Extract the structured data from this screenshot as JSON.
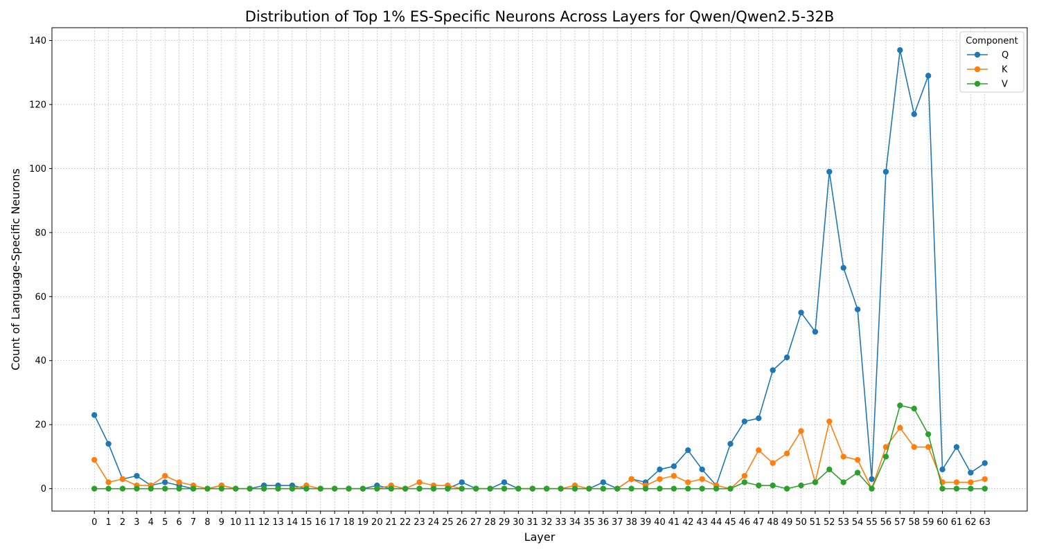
{
  "chart_data": {
    "type": "line",
    "title": "Distribution of Top 1% ES-Specific Neurons Across Layers for Qwen/Qwen2.5-32B",
    "xlabel": "Layer",
    "ylabel": "Count of Language-Specific Neurons",
    "x": [
      0,
      1,
      2,
      3,
      4,
      5,
      6,
      7,
      8,
      9,
      10,
      11,
      12,
      13,
      14,
      15,
      16,
      17,
      18,
      19,
      20,
      21,
      22,
      23,
      24,
      25,
      26,
      27,
      28,
      29,
      30,
      31,
      32,
      33,
      34,
      35,
      36,
      37,
      38,
      39,
      40,
      41,
      42,
      43,
      44,
      45,
      46,
      47,
      48,
      49,
      50,
      51,
      52,
      53,
      54,
      55,
      56,
      57,
      58,
      59,
      60,
      61,
      62,
      63
    ],
    "x_ticks": [
      "0",
      "1",
      "2",
      "3",
      "4",
      "5",
      "6",
      "7",
      "8",
      "9",
      "10",
      "11",
      "12",
      "13",
      "14",
      "15",
      "16",
      "17",
      "18",
      "19",
      "20",
      "21",
      "22",
      "23",
      "24",
      "25",
      "26",
      "27",
      "28",
      "29",
      "30",
      "31",
      "32",
      "33",
      "34",
      "35",
      "36",
      "37",
      "38",
      "39",
      "40",
      "41",
      "42",
      "43",
      "44",
      "45",
      "46",
      "47",
      "48",
      "49",
      "50",
      "51",
      "52",
      "53",
      "54",
      "55",
      "56",
      "57",
      "58",
      "59",
      "60",
      "61",
      "62",
      "63"
    ],
    "y_ticks": [
      "0",
      "20",
      "40",
      "60",
      "80",
      "100",
      "120",
      "140"
    ],
    "ylim": [
      -7,
      144
    ],
    "grid": true,
    "legend": {
      "title": "Component",
      "placement": "top-right"
    },
    "series": [
      {
        "name": "Q",
        "color": "#1f77b4",
        "values": [
          23,
          14,
          3,
          4,
          1,
          2,
          1,
          0,
          0,
          1,
          0,
          0,
          1,
          1,
          1,
          0,
          0,
          0,
          0,
          0,
          1,
          0,
          0,
          0,
          0,
          0,
          2,
          0,
          0,
          2,
          0,
          0,
          0,
          0,
          0,
          0,
          2,
          0,
          3,
          2,
          6,
          7,
          12,
          6,
          1,
          14,
          21,
          22,
          37,
          41,
          55,
          49,
          99,
          69,
          56,
          3,
          99,
          137,
          117,
          129,
          6,
          13,
          5,
          8
        ]
      },
      {
        "name": "K",
        "color": "#ff7f0e",
        "values": [
          9,
          2,
          3,
          1,
          1,
          4,
          2,
          1,
          0,
          1,
          0,
          0,
          0,
          0,
          0,
          1,
          0,
          0,
          0,
          0,
          0,
          1,
          0,
          2,
          1,
          1,
          0,
          0,
          0,
          0,
          0,
          0,
          0,
          0,
          1,
          0,
          0,
          0,
          3,
          1,
          3,
          4,
          2,
          3,
          1,
          0,
          4,
          12,
          8,
          11,
          18,
          2,
          21,
          10,
          9,
          0,
          13,
          19,
          13,
          13,
          2,
          2,
          2,
          3
        ]
      },
      {
        "name": "V",
        "color": "#2ca02c",
        "values": [
          0,
          0,
          0,
          0,
          0,
          0,
          0,
          0,
          0,
          0,
          0,
          0,
          0,
          0,
          0,
          0,
          0,
          0,
          0,
          0,
          0,
          0,
          0,
          0,
          0,
          0,
          0,
          0,
          0,
          0,
          0,
          0,
          0,
          0,
          0,
          0,
          0,
          0,
          0,
          0,
          0,
          0,
          0,
          0,
          0,
          0,
          2,
          1,
          1,
          0,
          1,
          2,
          6,
          2,
          5,
          0,
          10,
          26,
          25,
          17,
          0,
          0,
          0,
          0
        ]
      }
    ]
  }
}
